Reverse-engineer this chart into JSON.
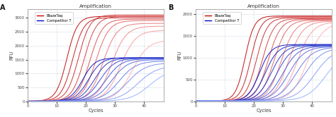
{
  "title": "Amplification",
  "xlabel": "Cycles",
  "ylabel": "RFU",
  "panel_A_label": "A",
  "panel_B_label": "B",
  "xlim": [
    0,
    47
  ],
  "xticks": [
    0,
    10,
    20,
    30,
    40
  ],
  "panel_A_ylim": [
    0,
    3300
  ],
  "panel_A_yticks": [
    0,
    500,
    1000,
    1500,
    2000,
    2500,
    3000
  ],
  "panel_B_ylim": [
    0,
    2100
  ],
  "panel_B_yticks": [
    0,
    500,
    1000,
    1500,
    2000
  ],
  "legend_entries": [
    "BlazeTaq",
    "Competitor T"
  ],
  "legend_colors_red": [
    "#cc0000",
    "#dd4444",
    "#ee7777",
    "#ff9999",
    "#ffbbbb"
  ],
  "legend_colors_blue": [
    "#0000cc",
    "#2222dd",
    "#5555ee",
    "#8888ff",
    "#aaaaff"
  ],
  "background_color": "#ffffff",
  "grid_color": "#aabbd0",
  "panel_A_red_curves": [
    {
      "midpoint": 13.5,
      "plateau": 3050,
      "steepness": 0.55
    },
    {
      "midpoint": 15.5,
      "plateau": 3000,
      "steepness": 0.52
    },
    {
      "midpoint": 17.5,
      "plateau": 3100,
      "steepness": 0.5
    },
    {
      "midpoint": 19.5,
      "plateau": 3050,
      "steepness": 0.48
    },
    {
      "midpoint": 21.5,
      "plateau": 2950,
      "steepness": 0.46
    },
    {
      "midpoint": 23.5,
      "plateau": 2900,
      "steepness": 0.44
    },
    {
      "midpoint": 26.0,
      "plateau": 2800,
      "steepness": 0.42
    },
    {
      "midpoint": 29.0,
      "plateau": 2700,
      "steepness": 0.4
    },
    {
      "midpoint": 32.0,
      "plateau": 2550,
      "steepness": 0.38
    },
    {
      "midpoint": 36.0,
      "plateau": 2200,
      "steepness": 0.36
    }
  ],
  "panel_A_blue_curves": [
    {
      "midpoint": 19.0,
      "plateau": 1560,
      "steepness": 0.48
    },
    {
      "midpoint": 21.0,
      "plateau": 1570,
      "steepness": 0.45
    },
    {
      "midpoint": 23.0,
      "plateau": 1555,
      "steepness": 0.43
    },
    {
      "midpoint": 25.0,
      "plateau": 1545,
      "steepness": 0.4
    },
    {
      "midpoint": 27.0,
      "plateau": 1530,
      "steepness": 0.38
    },
    {
      "midpoint": 29.0,
      "plateau": 1500,
      "steepness": 0.36
    },
    {
      "midpoint": 31.5,
      "plateau": 1450,
      "steepness": 0.34
    },
    {
      "midpoint": 34.5,
      "plateau": 1380,
      "steepness": 0.32
    },
    {
      "midpoint": 38.0,
      "plateau": 1280,
      "steepness": 0.3
    },
    {
      "midpoint": 42.0,
      "plateau": 1150,
      "steepness": 0.3
    }
  ],
  "panel_B_red_curves": [
    {
      "midpoint": 17.0,
      "plateau": 1950,
      "steepness": 0.62
    },
    {
      "midpoint": 19.0,
      "plateau": 1930,
      "steepness": 0.58
    },
    {
      "midpoint": 21.0,
      "plateau": 1910,
      "steepness": 0.54
    },
    {
      "midpoint": 23.0,
      "plateau": 1890,
      "steepness": 0.5
    },
    {
      "midpoint": 25.0,
      "plateau": 1875,
      "steepness": 0.47
    },
    {
      "midpoint": 27.0,
      "plateau": 1860,
      "steepness": 0.44
    },
    {
      "midpoint": 29.5,
      "plateau": 1845,
      "steepness": 0.42
    },
    {
      "midpoint": 32.0,
      "plateau": 1830,
      "steepness": 0.4
    },
    {
      "midpoint": 35.0,
      "plateau": 1815,
      "steepness": 0.38
    },
    {
      "midpoint": 38.5,
      "plateau": 1800,
      "steepness": 0.36
    }
  ],
  "panel_B_blue_curves": [
    {
      "midpoint": 22.0,
      "plateau": 1300,
      "steepness": 0.5
    },
    {
      "midpoint": 24.0,
      "plateau": 1290,
      "steepness": 0.46
    },
    {
      "midpoint": 26.0,
      "plateau": 1280,
      "steepness": 0.43
    },
    {
      "midpoint": 28.0,
      "plateau": 1270,
      "steepness": 0.4
    },
    {
      "midpoint": 30.0,
      "plateau": 1260,
      "steepness": 0.38
    },
    {
      "midpoint": 32.0,
      "plateau": 1250,
      "steepness": 0.36
    },
    {
      "midpoint": 34.5,
      "plateau": 1240,
      "steepness": 0.34
    },
    {
      "midpoint": 37.5,
      "plateau": 1230,
      "steepness": 0.32
    },
    {
      "midpoint": 41.0,
      "plateau": 1220,
      "steepness": 0.3
    },
    {
      "midpoint": 45.0,
      "plateau": 1190,
      "steepness": 0.3
    }
  ]
}
